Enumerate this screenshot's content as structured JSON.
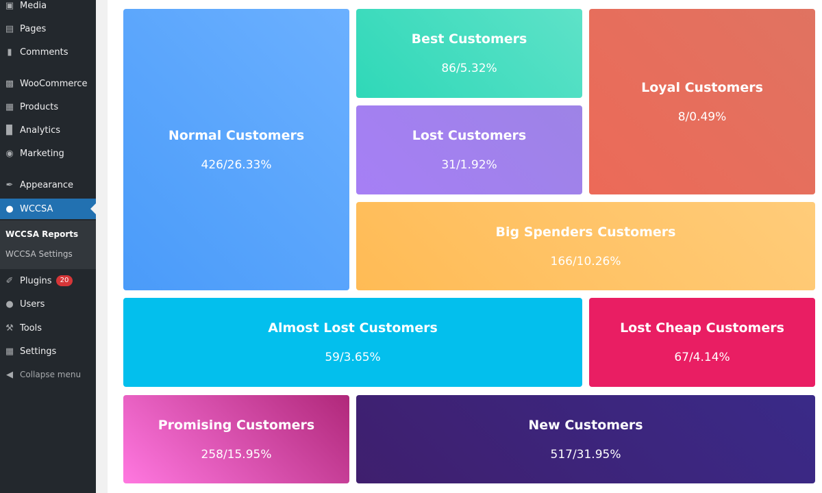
{
  "sidebar": {
    "items": [
      {
        "label": "Media",
        "icon": "media-icon"
      },
      {
        "label": "Pages",
        "icon": "pages-icon"
      },
      {
        "label": "Comments",
        "icon": "comments-icon"
      },
      {
        "label": "WooCommerce",
        "icon": "woocommerce-icon"
      },
      {
        "label": "Products",
        "icon": "products-icon"
      },
      {
        "label": "Analytics",
        "icon": "analytics-icon"
      },
      {
        "label": "Marketing",
        "icon": "marketing-icon"
      },
      {
        "label": "Appearance",
        "icon": "appearance-icon"
      },
      {
        "label": "WCCSA",
        "icon": "user-icon"
      },
      {
        "label": "Plugins",
        "icon": "plugins-icon",
        "badge": "20"
      },
      {
        "label": "Users",
        "icon": "users-icon"
      },
      {
        "label": "Tools",
        "icon": "tools-icon"
      },
      {
        "label": "Settings",
        "icon": "settings-icon"
      }
    ],
    "submenu": {
      "reports": "WCCSA Reports",
      "settings": "WCCSA Settings"
    },
    "collapse": "Collapse menu"
  },
  "segments": {
    "normal": {
      "label": "Normal Customers",
      "value": "426/26.33%",
      "color": "#5aa3fb"
    },
    "best": {
      "label": "Best Customers",
      "value": "86/5.32%",
      "color": "#3bdbbe"
    },
    "loyal": {
      "label": "Loyal Customers",
      "value": "8/0.49%",
      "color": "#e96c5c"
    },
    "lost": {
      "label": "Lost Customers",
      "value": "31/1.92%",
      "color": "#a283ef"
    },
    "big_spenders": {
      "label": "Big Spenders Customers",
      "value": "166/10.26%",
      "color": "#ffc266"
    },
    "almost_lost": {
      "label": "Almost Lost Customers",
      "value": "59/3.65%",
      "color": "#03bfed"
    },
    "lost_cheap": {
      "label": "Lost Cheap Customers",
      "value": "67/4.14%",
      "color": "#e91e63"
    },
    "promising": {
      "label": "Promising Customers",
      "value": "258/15.95%",
      "color": "#e254b8"
    },
    "new": {
      "label": "New Customers",
      "value": "517/31.95%",
      "color": "#3d2677"
    }
  },
  "colors": {
    "sidebar_bg": "#23282d",
    "active_bg": "#2271b1",
    "badge": "#d63638"
  }
}
